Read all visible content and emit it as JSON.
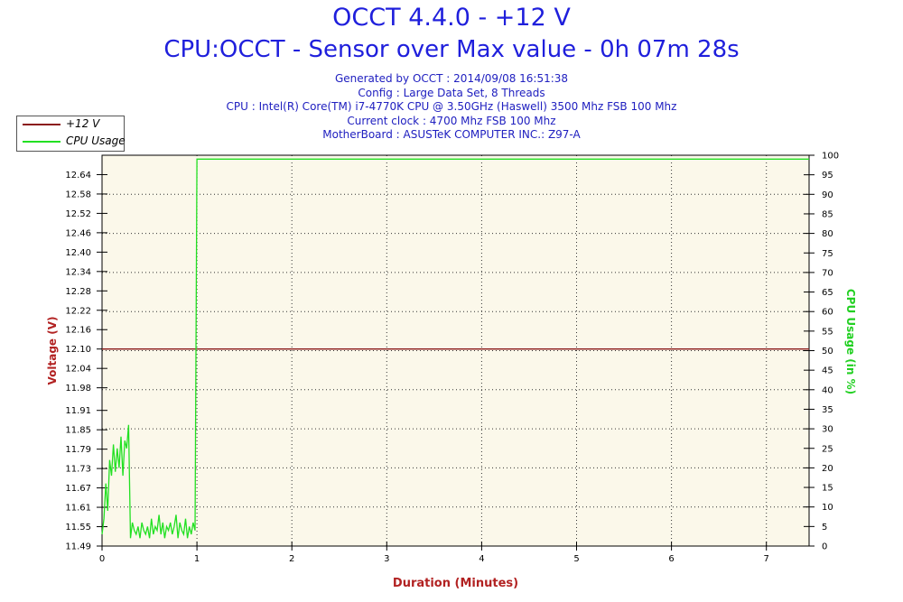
{
  "header": {
    "title": "OCCT 4.4.0 - +12 V",
    "subtitle": "CPU:OCCT - Sensor over Max value - 0h 07m 28s",
    "info_lines": [
      "Generated by OCCT : 2014/09/08 16:51:38",
      "Config : Large Data Set, 8 Threads",
      "CPU : Intel(R) Core(TM) i7-4770K CPU @ 3.50GHz (Haswell) 3500 Mhz FSB 100 Mhz",
      "Current clock : 4700 Mhz FSB 100 Mhz",
      "MotherBoard : ASUSTeK COMPUTER INC.: Z97-A"
    ]
  },
  "colors": {
    "plot_bg": "#fbf8ea",
    "voltage": "#8b1a1a",
    "cpu": "#22e022",
    "title": "#1f1fdc"
  },
  "chart_data": {
    "type": "line",
    "xlabel": "Duration (Minutes)",
    "ylabel": "Voltage (V)",
    "y2label": "CPU Usage (in %)",
    "xlim": [
      0,
      7.45
    ],
    "ylim": [
      11.49,
      12.7
    ],
    "y2lim": [
      0,
      100
    ],
    "x_ticks": [
      "0",
      "1",
      "2",
      "3",
      "4",
      "5",
      "6",
      "7"
    ],
    "y_ticks": [
      "12.64",
      "12.58",
      "12.52",
      "12.46",
      "12.40",
      "12.34",
      "12.28",
      "12.22",
      "12.16",
      "12.10",
      "12.04",
      "11.98",
      "11.91",
      "11.85",
      "11.79",
      "11.73",
      "11.67",
      "11.61",
      "11.55",
      "11.49"
    ],
    "y2_ticks": [
      "100",
      "95",
      "90",
      "85",
      "80",
      "75",
      "70",
      "65",
      "60",
      "55",
      "50",
      "45",
      "40",
      "35",
      "30",
      "25",
      "20",
      "15",
      "10",
      "5",
      "0"
    ],
    "grid": true,
    "legend": "top-left",
    "series": [
      {
        "name": "+12 V",
        "axis": "left",
        "x": [
          0,
          7.45
        ],
        "values": [
          12.1,
          12.1
        ]
      },
      {
        "name": "CPU Usage",
        "axis": "right",
        "x": [
          0.0,
          0.02,
          0.04,
          0.06,
          0.08,
          0.1,
          0.12,
          0.14,
          0.16,
          0.18,
          0.2,
          0.22,
          0.24,
          0.26,
          0.28,
          0.3,
          0.32,
          0.34,
          0.36,
          0.38,
          0.4,
          0.42,
          0.44,
          0.46,
          0.48,
          0.5,
          0.52,
          0.54,
          0.56,
          0.58,
          0.6,
          0.62,
          0.64,
          0.66,
          0.68,
          0.7,
          0.72,
          0.74,
          0.76,
          0.78,
          0.8,
          0.82,
          0.84,
          0.86,
          0.88,
          0.9,
          0.92,
          0.94,
          0.96,
          0.98,
          1.0,
          1.02,
          1.04,
          7.45
        ],
        "values": [
          3,
          7,
          16,
          9,
          22,
          18,
          26,
          19,
          25,
          20,
          28,
          18,
          27,
          25,
          31,
          2,
          6,
          4,
          3,
          5,
          2,
          6,
          4,
          3,
          5,
          2,
          7,
          3,
          5,
          4,
          8,
          3,
          6,
          2,
          5,
          4,
          6,
          3,
          5,
          8,
          2,
          6,
          4,
          3,
          7,
          2,
          5,
          3,
          6,
          4,
          99,
          99,
          99,
          99
        ]
      }
    ]
  }
}
